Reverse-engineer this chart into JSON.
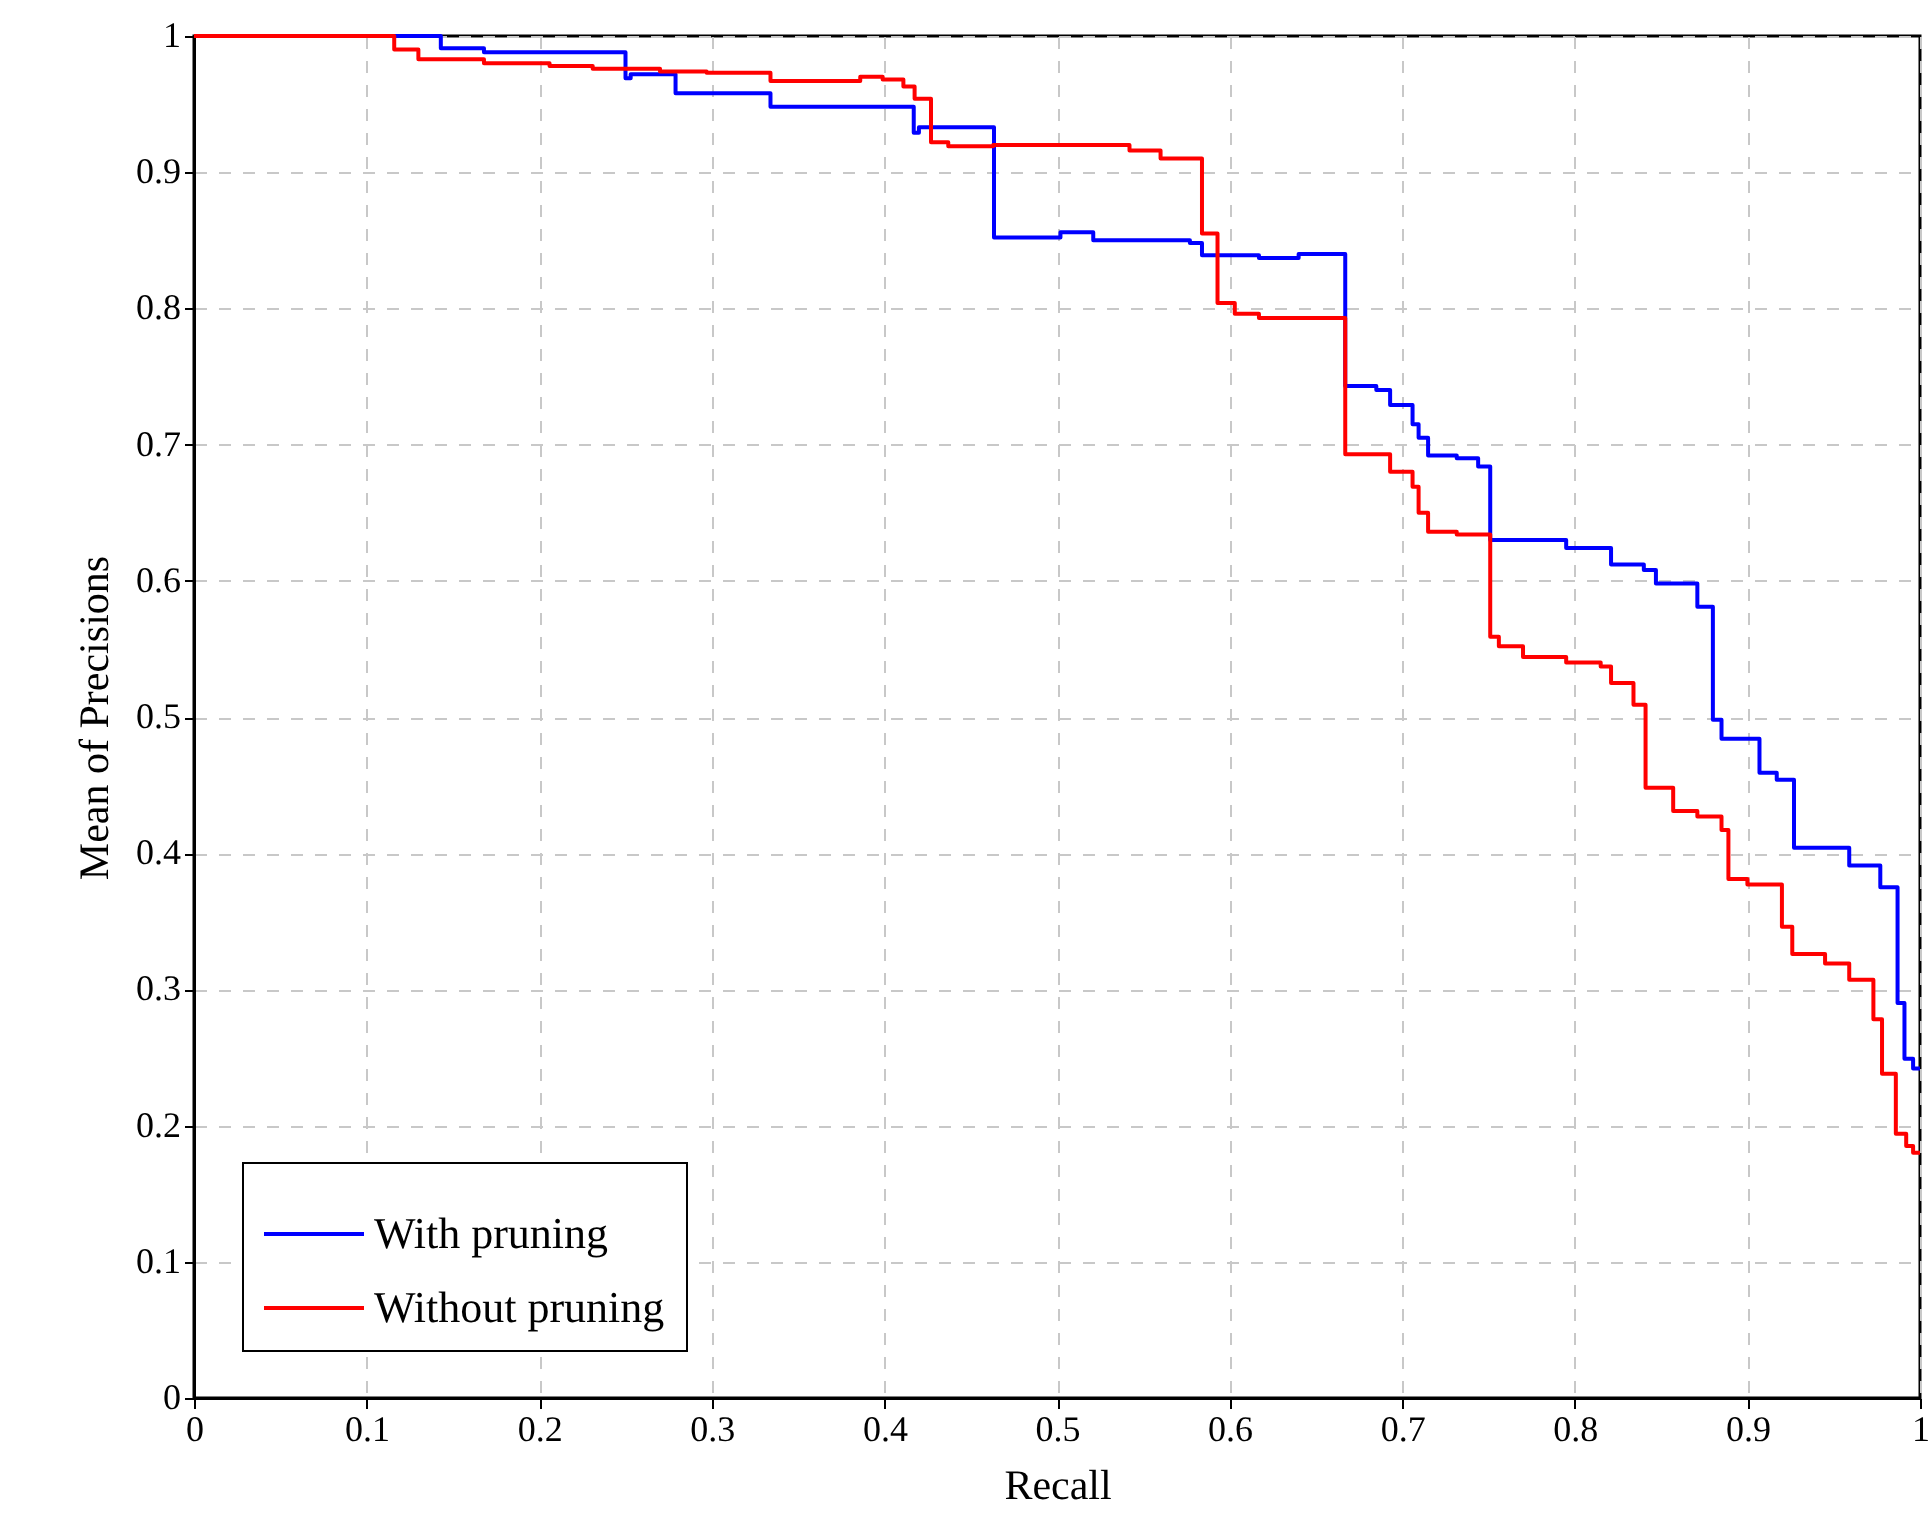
{
  "chart_data": {
    "type": "step",
    "xlabel": "Recall",
    "ylabel": "Mean of Precisions",
    "xlim": [
      0,
      1
    ],
    "ylim": [
      0,
      1
    ],
    "xticks": [
      0,
      0.1,
      0.2,
      0.3,
      0.4,
      0.5,
      0.6,
      0.7,
      0.8,
      0.9,
      1
    ],
    "yticks": [
      0,
      0.1,
      0.2,
      0.3,
      0.4,
      0.5,
      0.6,
      0.7,
      0.8,
      0.9,
      1
    ],
    "grid": true,
    "legend": "bottom left",
    "series": [
      {
        "name": "With pruning",
        "color": "#0000ff",
        "x": [
          0,
          0.143,
          0.168,
          0.25,
          0.253,
          0.279,
          0.334,
          0.417,
          0.42,
          0.4635,
          0.502,
          0.521,
          0.577,
          0.58,
          0.584,
          0.617,
          0.64,
          0.667,
          0.685,
          0.693,
          0.706,
          0.7095,
          0.715,
          0.7316,
          0.744,
          0.751,
          0.795,
          0.821,
          0.84,
          0.847,
          0.871,
          0.88,
          0.885,
          0.907,
          0.917,
          0.927,
          0.959,
          0.977,
          0.987,
          0.991,
          0.996,
          1
        ],
        "values": [
          1,
          0.991,
          0.988,
          0.969,
          0.972,
          0.958,
          0.948,
          0.929,
          0.933,
          0.852,
          0.856,
          0.85,
          0.848,
          0.848,
          0.839,
          0.837,
          0.84,
          0.743,
          0.74,
          0.729,
          0.715,
          0.705,
          0.692,
          0.69,
          0.684,
          0.63,
          0.624,
          0.612,
          0.608,
          0.598,
          0.581,
          0.498,
          0.484,
          0.459,
          0.454,
          0.404,
          0.391,
          0.375,
          0.29,
          0.249,
          0.242,
          0.242
        ]
      },
      {
        "name": "Without pruning",
        "color": "#ff0000",
        "x": [
          0,
          0.116,
          0.13,
          0.168,
          0.206,
          0.231,
          0.27,
          0.297,
          0.334,
          0.386,
          0.399,
          0.411,
          0.4175,
          0.427,
          0.437,
          0.463,
          0.542,
          0.56,
          0.584,
          0.593,
          0.603,
          0.617,
          0.667,
          0.693,
          0.706,
          0.7095,
          0.715,
          0.7316,
          0.751,
          0.756,
          0.77,
          0.795,
          0.815,
          0.821,
          0.834,
          0.841,
          0.857,
          0.871,
          0.885,
          0.889,
          0.9,
          0.92,
          0.926,
          0.945,
          0.959,
          0.973,
          0.978,
          0.986,
          0.992,
          0.996,
          1
        ],
        "values": [
          1,
          0.99,
          0.983,
          0.98,
          0.978,
          0.976,
          0.974,
          0.973,
          0.967,
          0.97,
          0.968,
          0.963,
          0.954,
          0.922,
          0.919,
          0.92,
          0.916,
          0.91,
          0.855,
          0.804,
          0.796,
          0.793,
          0.693,
          0.68,
          0.669,
          0.65,
          0.636,
          0.634,
          0.559,
          0.552,
          0.544,
          0.54,
          0.537,
          0.525,
          0.509,
          0.448,
          0.431,
          0.427,
          0.417,
          0.381,
          0.377,
          0.346,
          0.326,
          0.319,
          0.307,
          0.278,
          0.238,
          0.194,
          0.185,
          0.18,
          0.18
        ]
      }
    ]
  }
}
